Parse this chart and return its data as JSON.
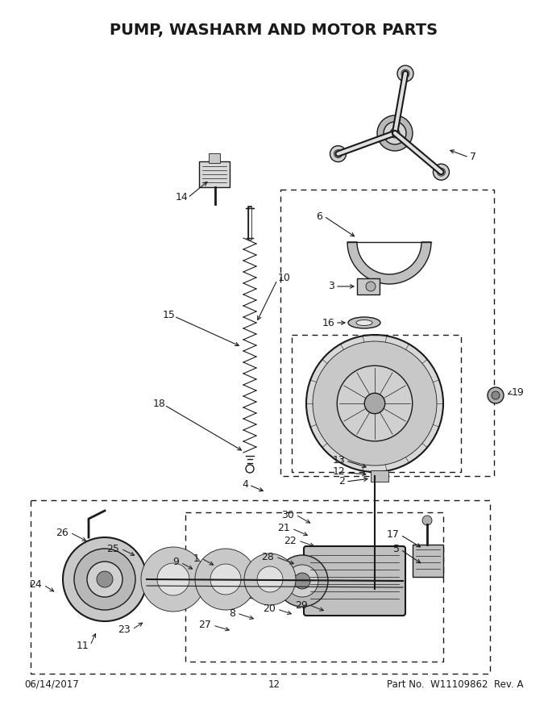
{
  "title": "PUMP, WASHARM AND MOTOR PARTS",
  "footer_left": "06/14/2017",
  "footer_center": "12",
  "footer_right": "Part No.  W11109862  Rev. A",
  "bg_color": "#ffffff",
  "line_color": "#1a1a1a",
  "title_fontsize": 14,
  "footer_fontsize": 8.5,
  "label_fontsize": 9
}
